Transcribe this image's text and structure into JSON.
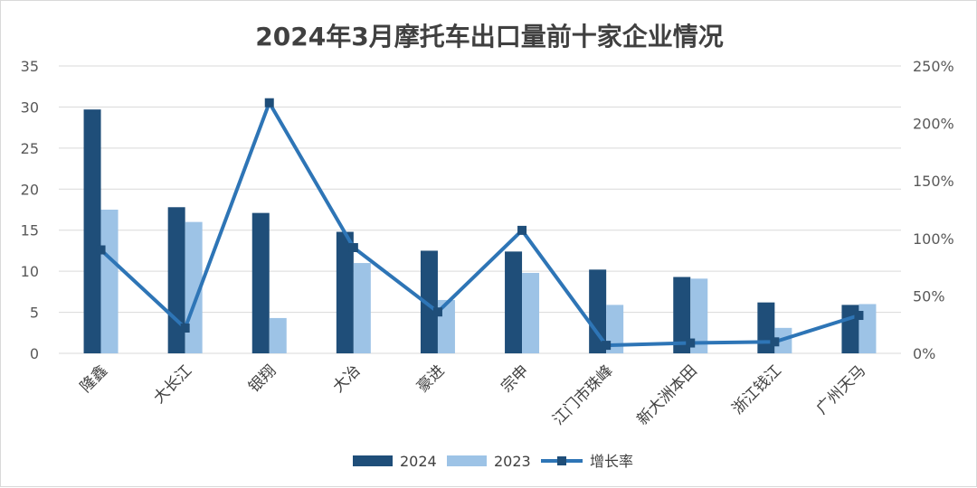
{
  "chart_data": {
    "type": "bar",
    "title": "2024年3月摩托车出口量前十家企业情况",
    "categories": [
      "隆鑫",
      "大长江",
      "银翔",
      "大冶",
      "豪进",
      "宗申",
      "江门市珠峰",
      "新大洲本田",
      "浙江钱江",
      "广州天马"
    ],
    "series": [
      {
        "name": "2024",
        "kind": "bar",
        "axis": "left",
        "color": "#1f4e79",
        "values": [
          29.7,
          17.8,
          17.1,
          14.8,
          12.5,
          12.4,
          10.2,
          9.3,
          6.2,
          5.9
        ]
      },
      {
        "name": "2023",
        "kind": "bar",
        "axis": "left",
        "color": "#9dc3e6",
        "values": [
          17.5,
          16.0,
          4.3,
          11.0,
          6.5,
          9.8,
          5.9,
          9.1,
          3.1,
          6.0
        ]
      },
      {
        "name": "增长率",
        "kind": "line",
        "axis": "right",
        "color": "#2e75b6",
        "values": [
          0.9,
          0.22,
          2.18,
          0.92,
          0.36,
          1.07,
          0.07,
          0.09,
          0.1,
          0.33
        ]
      }
    ],
    "y_left": {
      "min": 0,
      "max": 35,
      "ticks": [
        "0",
        "5",
        "10",
        "15",
        "20",
        "25",
        "30",
        "35"
      ]
    },
    "y_right": {
      "min": 0,
      "max": 2.5,
      "ticks": [
        "0%",
        "50%",
        "100%",
        "150%",
        "200%",
        "250%"
      ]
    },
    "grid": true,
    "legend": "bottom"
  }
}
